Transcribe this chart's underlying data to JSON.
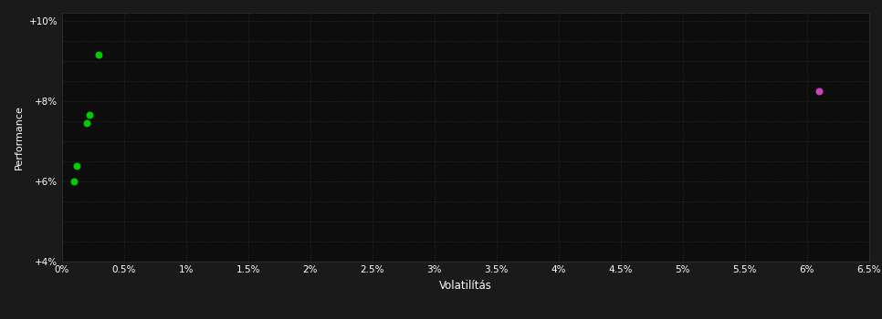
{
  "background_color": "#1a1a1a",
  "plot_bg_color": "#0d0d0d",
  "grid_color": "#2d4a2d",
  "text_color": "#ffffff",
  "xlabel": "Volatilítás",
  "ylabel": "Performance",
  "xlim": [
    0,
    0.065
  ],
  "ylim": [
    0.04,
    0.102
  ],
  "xticks": [
    0,
    0.005,
    0.01,
    0.015,
    0.02,
    0.025,
    0.03,
    0.035,
    0.04,
    0.045,
    0.05,
    0.055,
    0.06,
    0.065
  ],
  "xtick_labels": [
    "0%",
    "0.5%",
    "1%",
    "1.5%",
    "2%",
    "2.5%",
    "3%",
    "3.5%",
    "4%",
    "4.5%",
    "5%",
    "5.5%",
    "6%",
    "6.5%"
  ],
  "yticks": [
    0.04,
    0.06,
    0.08,
    0.1
  ],
  "ytick_labels": [
    "+4%",
    "+6%",
    "+8%",
    "+10%"
  ],
  "yticks_minor": [
    0.04,
    0.045,
    0.05,
    0.055,
    0.06,
    0.065,
    0.07,
    0.075,
    0.08,
    0.085,
    0.09,
    0.095,
    0.1
  ],
  "green_points": [
    [
      0.003,
      0.0915
    ],
    [
      0.0022,
      0.0765
    ],
    [
      0.002,
      0.0745
    ],
    [
      0.0012,
      0.0638
    ],
    [
      0.001,
      0.06
    ]
  ],
  "magenta_points": [
    [
      0.061,
      0.0825
    ]
  ],
  "green_color": "#00cc00",
  "magenta_color": "#cc44bb",
  "point_size": 22
}
